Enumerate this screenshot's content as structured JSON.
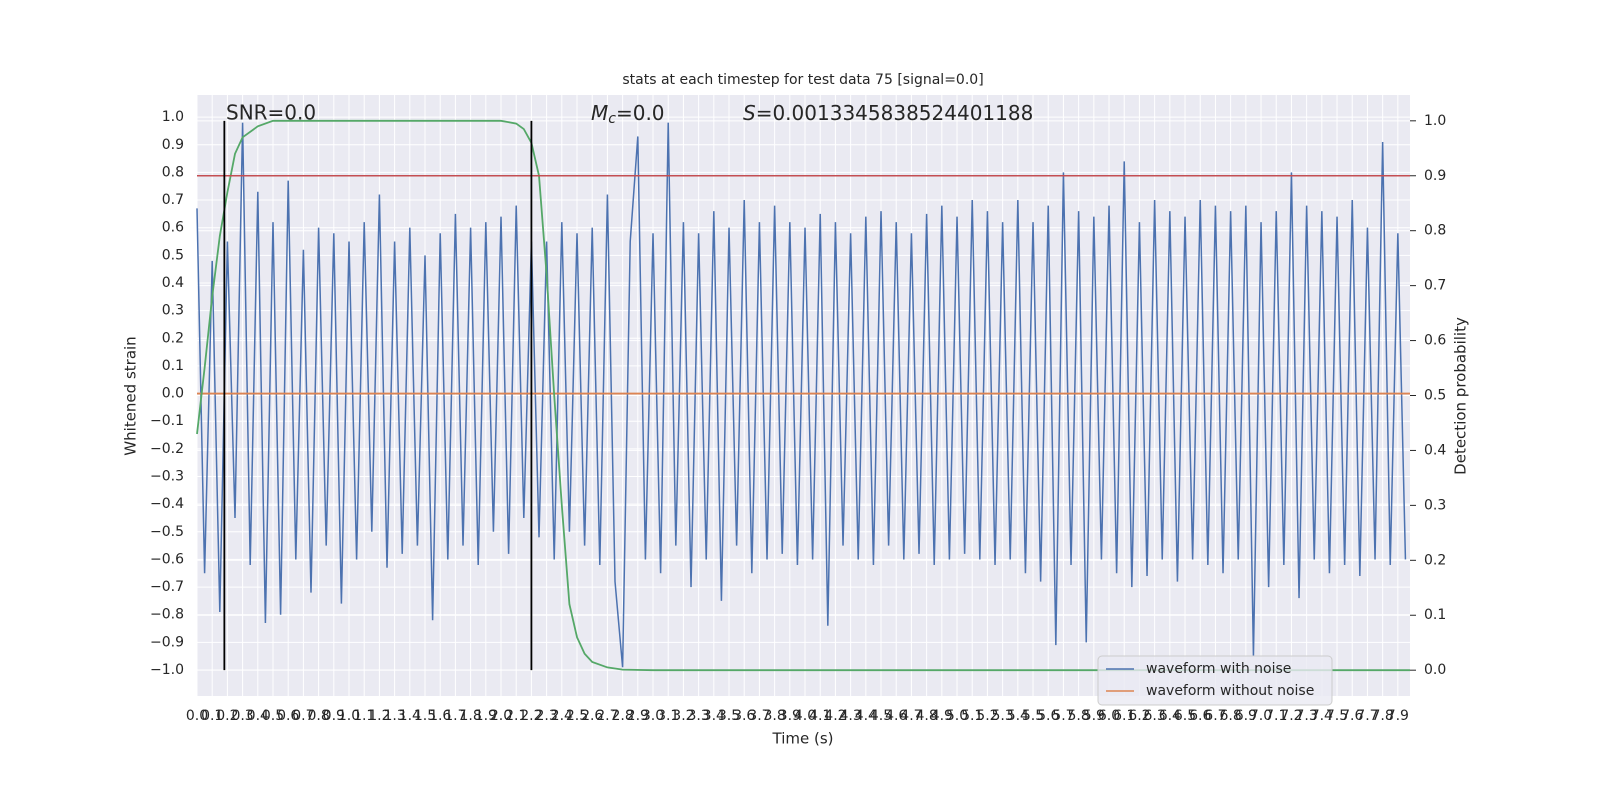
{
  "chart_data": {
    "type": "line",
    "title": "stats at each timestep for test data 75 [signal=0.0]",
    "xlabel": "Time (s)",
    "ylabel": "Whitened strain",
    "y2label": "Detection probability",
    "xlim": [
      0,
      7.98
    ],
    "ylim": [
      -1.094,
      1.08
    ],
    "y2lim": [
      -0.047,
      1.047
    ],
    "grid": true,
    "legend": "lower right",
    "xticks": [
      {
        "value": 0,
        "label": "0.0"
      },
      0.1,
      0.2,
      0.3,
      0.4,
      0.5,
      0.6,
      0.7,
      0.8,
      0.9,
      {
        "value": 1,
        "label": "1.0"
      },
      1.1,
      1.2,
      1.3,
      1.4,
      1.5,
      1.6,
      1.7,
      1.8,
      1.9,
      {
        "value": 2,
        "label": "2.0"
      },
      2.1,
      2.2,
      2.3,
      2.4,
      2.5,
      2.6,
      2.7,
      2.8,
      2.9,
      {
        "value": 3,
        "label": "3.0"
      },
      3.1,
      3.2,
      3.3,
      3.4,
      3.5,
      3.6,
      3.7,
      3.8,
      3.9,
      {
        "value": 4,
        "label": "4.0"
      },
      4.1,
      4.2,
      4.3,
      4.4,
      4.5,
      4.6,
      4.7,
      4.8,
      4.9,
      {
        "value": 5,
        "label": "5.0"
      },
      5.1,
      5.2,
      5.3,
      5.4,
      5.5,
      5.6,
      5.7,
      5.8,
      5.9,
      {
        "value": 6,
        "label": "6.0"
      },
      6.1,
      6.2,
      6.3,
      6.4,
      6.5,
      6.6,
      6.7,
      6.8,
      6.9,
      {
        "value": 7,
        "label": "7.0"
      },
      7.1,
      7.2,
      7.3,
      7.4,
      7.5,
      7.6,
      7.7,
      7.8,
      7.9
    ],
    "yticks": [
      {
        "value": -1,
        "label": "−1.0"
      },
      {
        "value": -0.9,
        "label": "−0.9"
      },
      {
        "value": -0.8,
        "label": "−0.8"
      },
      {
        "value": -0.7,
        "label": "−0.7"
      },
      {
        "value": -0.6,
        "label": "−0.6"
      },
      {
        "value": -0.5,
        "label": "−0.5"
      },
      {
        "value": -0.4,
        "label": "−0.4"
      },
      {
        "value": -0.3,
        "label": "−0.3"
      },
      {
        "value": -0.2,
        "label": "−0.2"
      },
      {
        "value": -0.1,
        "label": "−0.1"
      },
      {
        "value": 0,
        "label": "0.0"
      },
      0.1,
      0.2,
      0.3,
      0.4,
      0.5,
      0.6,
      0.7,
      0.8,
      0.9,
      {
        "value": 1,
        "label": "1.0"
      }
    ],
    "y2ticks": [
      {
        "value": 0,
        "label": "0.0"
      },
      0.1,
      0.2,
      0.3,
      0.4,
      0.5,
      0.6,
      0.7,
      0.8,
      0.9,
      {
        "value": 1,
        "label": "1.0"
      }
    ],
    "series": [
      {
        "name": "waveform with noise",
        "color": "#4c72b0",
        "x": [
          0,
          0.05,
          0.1,
          0.15,
          0.2,
          0.25,
          0.3,
          0.35,
          0.4,
          0.45,
          0.5,
          0.55,
          0.6,
          0.65,
          0.7,
          0.75,
          0.8,
          0.85,
          0.9,
          0.95,
          1,
          1.05,
          1.1,
          1.15,
          1.2,
          1.25,
          1.3,
          1.35,
          1.4,
          1.45,
          1.5,
          1.55,
          1.6,
          1.65,
          1.7,
          1.75,
          1.8,
          1.85,
          1.9,
          1.95,
          2,
          2.05,
          2.1,
          2.15,
          2.2,
          2.25,
          2.3,
          2.35,
          2.4,
          2.45,
          2.5,
          2.55,
          2.6,
          2.65,
          2.7,
          2.75,
          2.8,
          2.85,
          2.9,
          2.95,
          3,
          3.05,
          3.1,
          3.15,
          3.2,
          3.25,
          3.3,
          3.35,
          3.4,
          3.45,
          3.5,
          3.55,
          3.6,
          3.65,
          3.7,
          3.75,
          3.8,
          3.85,
          3.9,
          3.95,
          4,
          4.05,
          4.1,
          4.15,
          4.2,
          4.25,
          4.3,
          4.35,
          4.4,
          4.45,
          4.5,
          4.55,
          4.6,
          4.65,
          4.7,
          4.75,
          4.8,
          4.85,
          4.9,
          4.95,
          5,
          5.05,
          5.1,
          5.15,
          5.2,
          5.25,
          5.3,
          5.35,
          5.4,
          5.45,
          5.5,
          5.55,
          5.6,
          5.65,
          5.7,
          5.75,
          5.8,
          5.85,
          5.9,
          5.95,
          6,
          6.05,
          6.1,
          6.15,
          6.2,
          6.25,
          6.3,
          6.35,
          6.4,
          6.45,
          6.5,
          6.55,
          6.6,
          6.65,
          6.7,
          6.75,
          6.8,
          6.85,
          6.9,
          6.95,
          7,
          7.05,
          7.1,
          7.15,
          7.2,
          7.25,
          7.3,
          7.35,
          7.4,
          7.45,
          7.5,
          7.55,
          7.6,
          7.65,
          7.7,
          7.75,
          7.8,
          7.85,
          7.9,
          7.95
        ],
        "values": [
          0.67,
          -0.65,
          0.48,
          -0.79,
          0.55,
          -0.45,
          0.98,
          -0.62,
          0.73,
          -0.83,
          0.62,
          -0.8,
          0.77,
          -0.6,
          0.52,
          -0.72,
          0.6,
          -0.55,
          0.58,
          -0.76,
          0.55,
          -0.6,
          0.62,
          -0.5,
          0.72,
          -0.63,
          0.55,
          -0.58,
          0.6,
          -0.55,
          0.5,
          -0.82,
          0.58,
          -0.6,
          0.65,
          -0.55,
          0.6,
          -0.62,
          0.62,
          -0.5,
          0.64,
          -0.58,
          0.68,
          -0.45,
          0.55,
          -0.52,
          0.55,
          -0.6,
          0.62,
          -0.5,
          0.58,
          -0.55,
          0.6,
          -0.62,
          0.72,
          -0.68,
          -0.99,
          0.55,
          0.93,
          -0.6,
          0.58,
          -0.65,
          0.98,
          -0.55,
          0.62,
          -0.7,
          0.58,
          -0.6,
          0.66,
          -0.75,
          0.6,
          -0.55,
          0.7,
          -0.65,
          0.62,
          -0.6,
          0.68,
          -0.58,
          0.62,
          -0.62,
          0.6,
          -0.6,
          0.65,
          -0.84,
          0.62,
          -0.55,
          0.58,
          -0.6,
          0.64,
          -0.62,
          0.66,
          -0.55,
          0.62,
          -0.6,
          0.58,
          -0.58,
          0.65,
          -0.62,
          0.68,
          -0.6,
          0.64,
          -0.58,
          0.7,
          -0.6,
          0.66,
          -0.62,
          0.62,
          -0.6,
          0.7,
          -0.65,
          0.62,
          -0.68,
          0.68,
          -0.91,
          0.8,
          -0.62,
          0.66,
          -0.9,
          0.64,
          -0.6,
          0.68,
          -0.65,
          0.84,
          -0.7,
          0.62,
          -0.66,
          0.7,
          -0.6,
          0.66,
          -0.68,
          0.64,
          -0.6,
          0.7,
          -0.62,
          0.68,
          -0.65,
          0.66,
          -0.6,
          0.68,
          -0.95,
          0.62,
          -0.7,
          0.66,
          -0.62,
          0.8,
          -0.74,
          0.68,
          -0.6,
          0.66,
          -0.65,
          0.64,
          -0.62,
          0.7,
          -0.66,
          0.6,
          -0.6,
          0.91,
          -0.62,
          0.58,
          -0.6
        ]
      },
      {
        "name": "waveform without noise",
        "color": "#dd8452",
        "x": [
          0,
          7.98
        ],
        "values": [
          0,
          0
        ]
      },
      {
        "color": "#55a868",
        "axis": "y2",
        "x": [
          0,
          0.05,
          0.1,
          0.15,
          0.2,
          0.25,
          0.3,
          0.4,
          0.5,
          0.6,
          0.8,
          1,
          1.5,
          2,
          2.1,
          2.15,
          2.2,
          2.25,
          2.3,
          2.35,
          2.4,
          2.45,
          2.5,
          2.55,
          2.6,
          2.7,
          2.8,
          3,
          4,
          5,
          6,
          7,
          7.98
        ],
        "values": [
          0.43,
          0.55,
          0.68,
          0.79,
          0.87,
          0.94,
          0.97,
          0.99,
          1,
          1,
          1,
          1,
          1,
          1,
          0.995,
          0.985,
          0.96,
          0.9,
          0.72,
          0.5,
          0.3,
          0.12,
          0.06,
          0.03,
          0.015,
          0.005,
          0.001,
          0,
          0,
          0,
          0,
          0,
          0
        ]
      }
    ],
    "threshold": {
      "value": 0.9,
      "axis": "y2",
      "color": "#c44e52"
    },
    "vlines": {
      "x": [
        0.18,
        2.2
      ],
      "ymin": 0,
      "ymax": 1,
      "axis": "y2",
      "color": "#000000"
    },
    "annotations": [
      {
        "text": "SNR=0.0"
      },
      {
        "symbol": "M",
        "subscript": "c",
        "text": "=0.0"
      },
      {
        "symbol": "S",
        "text": "=0.0013345838524401188"
      }
    ]
  }
}
